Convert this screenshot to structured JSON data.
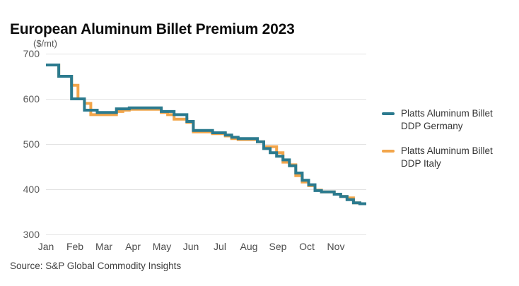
{
  "title": "European Aluminum Billet Premium 2023",
  "unit_label": "($/mt)",
  "source": "Source: S&P Global Commodity Insights",
  "colors": {
    "germany": "#2B7A8E",
    "italy": "#F2A54A",
    "grid": "#E3E3E3",
    "tick": "#595959"
  },
  "chart_data": {
    "type": "line",
    "step": true,
    "title": "European Aluminum Billet Premium 2023",
    "ylabel": "($/mt)",
    "ylim": [
      300,
      700
    ],
    "yticks": [
      700,
      600,
      500,
      400,
      300
    ],
    "xticks": [
      "Jan",
      "Feb",
      "Mar",
      "Apr",
      "May",
      "Jun",
      "Jul",
      "Aug",
      "Sep",
      "Oct",
      "Nov"
    ],
    "x_unit": "weekly, Jan through mid-Dec 2023",
    "grid": "horizontal-only",
    "legend_position": "right",
    "series": [
      {
        "name": "Platts Aluminum Billet DDP Germany",
        "color": "#2B7A8E",
        "values": [
          675,
          675,
          650,
          650,
          600,
          600,
          575,
          575,
          570,
          570,
          570,
          578,
          578,
          580,
          580,
          580,
          580,
          580,
          572,
          572,
          565,
          565,
          550,
          530,
          530,
          530,
          525,
          525,
          520,
          515,
          512,
          512,
          512,
          505,
          490,
          481,
          473,
          465,
          452,
          436,
          420,
          410,
          397,
          394,
          394,
          389,
          384,
          377,
          370,
          368
        ]
      },
      {
        "name": "Platts Aluminum Billet DDP Italy",
        "color": "#F2A54A",
        "values": [
          675,
          675,
          650,
          650,
          630,
          600,
          590,
          565,
          565,
          565,
          565,
          572,
          575,
          577,
          577,
          577,
          577,
          577,
          570,
          565,
          555,
          555,
          548,
          527,
          527,
          527,
          523,
          523,
          518,
          512,
          510,
          510,
          510,
          505,
          494,
          494,
          481,
          460,
          454,
          430,
          416,
          408,
          398,
          394,
          394,
          389,
          384,
          381,
          370,
          368
        ]
      }
    ]
  }
}
